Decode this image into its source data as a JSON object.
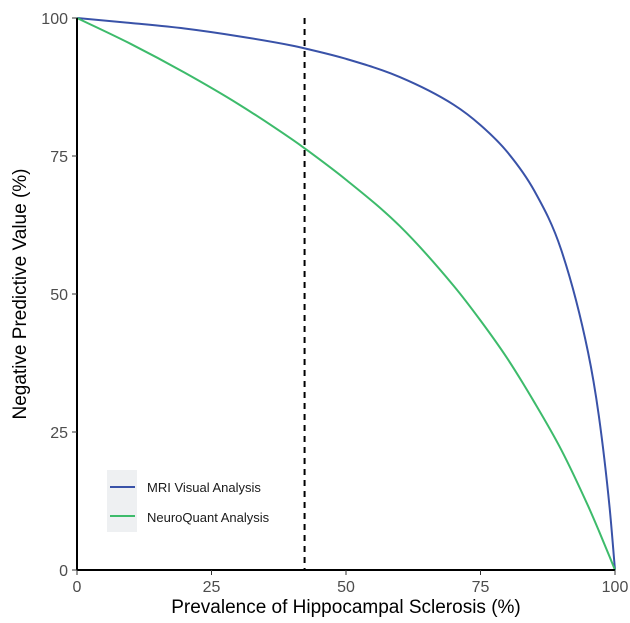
{
  "chart_data": {
    "type": "line",
    "title": "",
    "xlabel": "Prevalence of Hippocampal Sclerosis (%)",
    "ylabel": "Negative Predictive Value (%)",
    "xlim": [
      0,
      100
    ],
    "ylim": [
      0,
      100
    ],
    "x_ticks": [
      "0",
      "25",
      "50",
      "75",
      "100"
    ],
    "y_ticks": [
      "0",
      "25",
      "50",
      "75",
      "100"
    ],
    "grid": false,
    "legend_position": "bottom-left",
    "reference_line": {
      "type": "vertical",
      "style": "dashed",
      "x": 42.3,
      "color": "#000000"
    },
    "series": [
      {
        "name": "MRI Visual Analysis",
        "color": "#3952a8",
        "x": [
          0,
          10,
          20,
          30,
          40,
          42.3,
          50,
          60,
          70,
          75,
          80,
          85,
          90,
          95,
          97,
          99,
          100
        ],
        "y": [
          100,
          99.1,
          98.1,
          96.7,
          95.0,
          94.5,
          92.6,
          89.3,
          84.3,
          80.6,
          75.7,
          68.7,
          58.0,
          39.4,
          27.9,
          11.3,
          0
        ]
      },
      {
        "name": "NeuroQuant Analysis",
        "color": "#3dbb6b",
        "x": [
          0,
          10,
          20,
          30,
          40,
          42.3,
          50,
          60,
          70,
          75,
          80,
          85,
          90,
          95,
          97,
          99,
          100
        ],
        "y": [
          100,
          95.3,
          90.1,
          84.4,
          78.0,
          76.4,
          70.7,
          62.3,
          51.5,
          45.2,
          38.3,
          30.4,
          21.8,
          11.6,
          7.1,
          2.4,
          0
        ]
      }
    ]
  }
}
